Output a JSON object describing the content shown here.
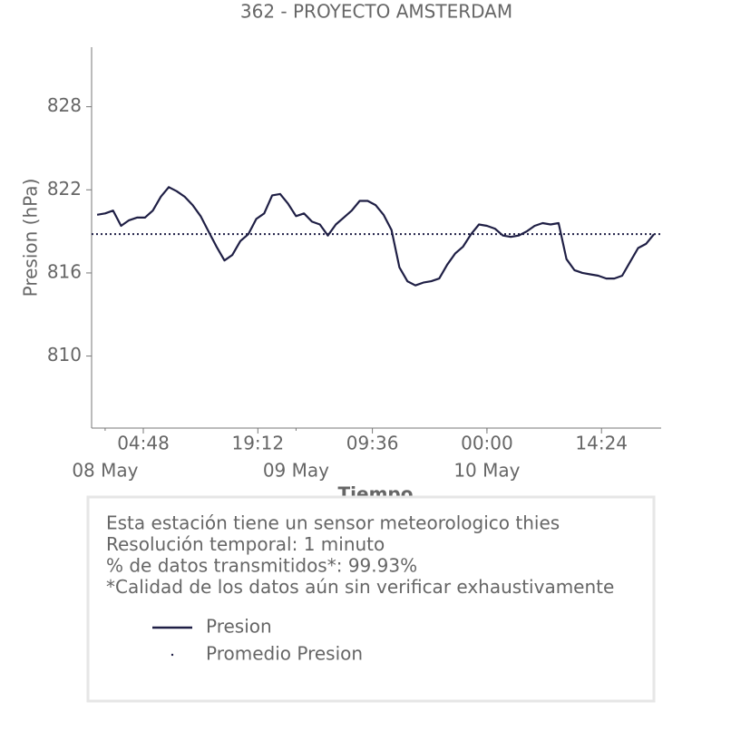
{
  "chart_data": {
    "type": "line",
    "title": "362 - PROYECTO AMSTERDAM",
    "xlabel": "Tiempo",
    "ylabel": "Presion (hPa)",
    "xlim": [
      "07 May 22:18",
      "10 May 21:54"
    ],
    "ylim": [
      804.8,
      832.3
    ],
    "yticks": [
      810,
      816,
      822,
      828
    ],
    "xticks": [
      {
        "value": "08 May 04:48",
        "label": "04:48"
      },
      {
        "value": "08 May 19:12",
        "label": "19:12"
      },
      {
        "value": "09 May 09:36",
        "label": "09:36"
      },
      {
        "value": "10 May 00:00",
        "label": "00:00"
      },
      {
        "value": "10 May 14:24",
        "label": "14:24"
      }
    ],
    "xticks_minor": [
      {
        "value": "08 May 00:00",
        "label": "08 May"
      },
      {
        "value": "09 May 00:00",
        "label": "09 May"
      },
      {
        "value": "10 May 00:00",
        "label": "10 May"
      }
    ],
    "x": [
      "07 May 23:00",
      "08 May 00:00",
      "08 May 01:00",
      "08 May 02:00",
      "08 May 03:00",
      "08 May 04:00",
      "08 May 05:00",
      "08 May 06:00",
      "08 May 07:00",
      "08 May 08:00",
      "08 May 09:00",
      "08 May 10:00",
      "08 May 11:00",
      "08 May 12:00",
      "08 May 13:00",
      "08 May 14:00",
      "08 May 15:00",
      "08 May 16:00",
      "08 May 17:00",
      "08 May 18:00",
      "08 May 19:00",
      "08 May 20:00",
      "08 May 21:00",
      "08 May 22:00",
      "08 May 23:00",
      "09 May 00:00",
      "09 May 01:00",
      "09 May 02:00",
      "09 May 03:00",
      "09 May 04:00",
      "09 May 05:00",
      "09 May 06:00",
      "09 May 07:00",
      "09 May 08:00",
      "09 May 09:00",
      "09 May 10:00",
      "09 May 11:00",
      "09 May 12:00",
      "09 May 13:00",
      "09 May 14:00",
      "09 May 15:00",
      "09 May 16:00",
      "09 May 17:00",
      "09 May 18:00",
      "09 May 19:00",
      "09 May 20:00",
      "09 May 21:00",
      "09 May 22:00",
      "09 May 23:00",
      "10 May 00:00",
      "10 May 01:00",
      "10 May 02:00",
      "10 May 03:00",
      "10 May 04:00",
      "10 May 05:00",
      "10 May 06:00",
      "10 May 07:00",
      "10 May 08:00",
      "10 May 09:00",
      "10 May 10:00",
      "10 May 11:00",
      "10 May 12:00",
      "10 May 13:00",
      "10 May 14:00",
      "10 May 15:00",
      "10 May 16:00",
      "10 May 17:00",
      "10 May 18:00",
      "10 May 19:00",
      "10 May 20:00",
      "10 May 21:00"
    ],
    "series": [
      {
        "name": "Presion",
        "color": "#1f1f45",
        "values": [
          820.2,
          820.3,
          820.5,
          819.4,
          819.8,
          820.0,
          820.0,
          820.5,
          821.5,
          822.2,
          821.9,
          821.5,
          820.9,
          820.1,
          819.0,
          817.9,
          816.9,
          817.3,
          818.3,
          818.8,
          819.9,
          820.3,
          821.6,
          821.7,
          821.0,
          820.1,
          820.3,
          819.7,
          819.5,
          818.7,
          819.5,
          820.0,
          820.5,
          821.2,
          821.2,
          820.9,
          820.2,
          819.1,
          816.4,
          815.4,
          815.1,
          815.3,
          815.4,
          815.6,
          816.6,
          817.4,
          817.9,
          818.8,
          819.5,
          819.4,
          819.2,
          818.7,
          818.6,
          818.7,
          819.0,
          819.4,
          819.6,
          819.5,
          819.6,
          817.0,
          816.2,
          816.0,
          815.9,
          815.8,
          815.6,
          815.6,
          815.8,
          816.8,
          817.8,
          818.1,
          818.8
        ]
      },
      {
        "name": "Promedio Presion",
        "color": "#1f1f45",
        "value": 818.8,
        "linestyle": "dotted"
      }
    ],
    "annotations": [
      "Esta estación tiene un sensor meteorologico thies",
      "Resolución temporal: 1 minuto",
      "% de datos transmitidos*: 99.93%",
      "*Calidad de los datos aún sin verificar exhaustivamente"
    ]
  }
}
